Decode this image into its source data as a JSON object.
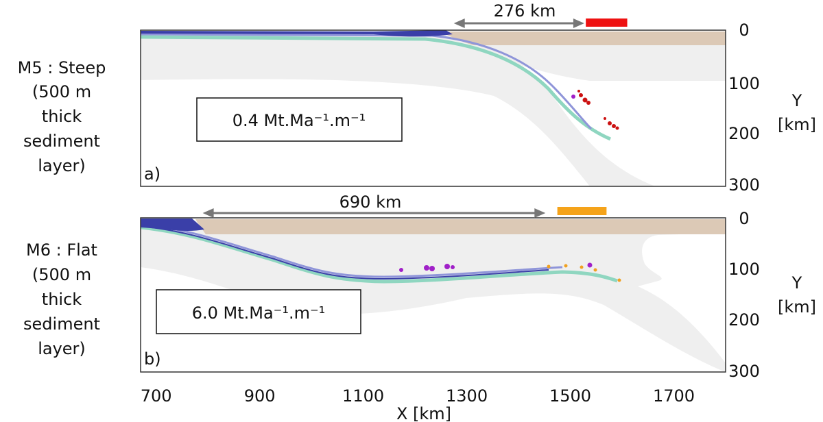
{
  "figure": {
    "x_axis": {
      "label": "X [km]",
      "ticks": [
        700,
        900,
        1100,
        1300,
        1500,
        1700
      ],
      "range": [
        670,
        1800
      ]
    },
    "y_axis": {
      "label_line1": "Y",
      "label_line2": "[km]",
      "ticks": [
        0,
        100,
        200,
        300
      ],
      "range": [
        0,
        300
      ]
    },
    "panels": [
      {
        "id": "a",
        "panel_label": "a)",
        "title_lines": [
          "M5 : Steep",
          "(500 m",
          "thick",
          "sediment",
          "layer)"
        ],
        "rate_text": "0.4 Mt.Ma⁻¹.m⁻¹",
        "distance_label": "276 km",
        "distance_span_km": [
          1275,
          1527
        ],
        "bar_span_km": [
          1530,
          1610
        ],
        "bar_color": "#ee1111",
        "slab_geometry": "steep"
      },
      {
        "id": "b",
        "panel_label": "b)",
        "title_lines": [
          "M6 : Flat",
          "(500 m",
          "thick",
          "sediment",
          "layer)"
        ],
        "rate_text": "6.0 Mt.Ma⁻¹.m⁻¹",
        "distance_label": "690 km",
        "distance_span_km": [
          790,
          1452
        ],
        "bar_span_km": [
          1475,
          1570
        ],
        "bar_color": "#f5a31a",
        "slab_geometry": "flat"
      }
    ],
    "colors": {
      "mantle": "#efefef",
      "crust": "#dcc9b6",
      "sediment": "#3a3fa8",
      "oceanic_crust": "#8fd6c0",
      "sediment_light": "#8f95d9",
      "arrow": "#777777",
      "melt_red": "#cc1111",
      "melt_purple": "#a020c8",
      "melt_orange": "#f0a020"
    }
  }
}
